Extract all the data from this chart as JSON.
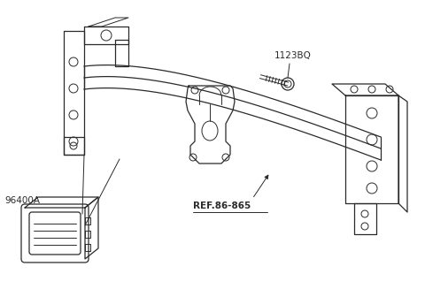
{
  "background_color": "#ffffff",
  "line_color": "#2a2a2a",
  "label_96400A": "96400A",
  "label_1123BQ": "1123BQ",
  "label_REF": "REF.86-865",
  "fig_width": 4.8,
  "fig_height": 3.27,
  "dpi": 100
}
